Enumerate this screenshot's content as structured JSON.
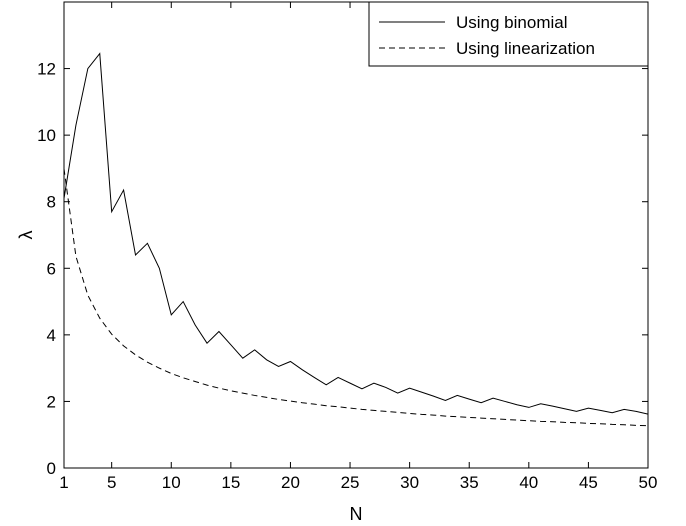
{
  "chart_data": {
    "type": "line",
    "title": "",
    "xlabel": "N",
    "ylabel": "λ",
    "xlim": [
      1,
      50
    ],
    "ylim": [
      0,
      14
    ],
    "grid": false,
    "legend_position": "top-right",
    "x_ticks": [
      1,
      5,
      10,
      15,
      20,
      25,
      30,
      35,
      40,
      45,
      50
    ],
    "y_ticks": [
      0,
      2,
      4,
      6,
      8,
      10,
      12
    ],
    "x": [
      1,
      2,
      3,
      4,
      5,
      6,
      7,
      8,
      9,
      10,
      11,
      12,
      13,
      14,
      15,
      16,
      17,
      18,
      19,
      20,
      21,
      22,
      23,
      24,
      25,
      26,
      27,
      28,
      29,
      30,
      31,
      32,
      33,
      34,
      35,
      36,
      37,
      38,
      39,
      40,
      41,
      42,
      43,
      44,
      45,
      46,
      47,
      48,
      49,
      50
    ],
    "series": [
      {
        "name": "Using binomial",
        "style": "solid",
        "color": "#000000",
        "values": [
          8.1,
          10.3,
          12.0,
          12.45,
          7.7,
          8.35,
          6.4,
          6.75,
          6.0,
          4.6,
          5.0,
          4.3,
          3.75,
          4.1,
          3.7,
          3.3,
          3.55,
          3.25,
          3.05,
          3.2,
          2.95,
          2.72,
          2.5,
          2.72,
          2.55,
          2.38,
          2.55,
          2.42,
          2.25,
          2.4,
          2.28,
          2.16,
          2.03,
          2.18,
          2.07,
          1.96,
          2.1,
          2.0,
          1.9,
          1.82,
          1.93,
          1.86,
          1.78,
          1.7,
          1.8,
          1.73,
          1.66,
          1.76,
          1.7,
          1.62
        ]
      },
      {
        "name": "Using linearization",
        "style": "dashed",
        "color": "#000000",
        "values": [
          8.99,
          6.36,
          5.19,
          4.5,
          4.02,
          3.67,
          3.4,
          3.18,
          3.0,
          2.84,
          2.71,
          2.6,
          2.49,
          2.4,
          2.32,
          2.25,
          2.18,
          2.12,
          2.06,
          2.01,
          1.96,
          1.92,
          1.87,
          1.84,
          1.8,
          1.76,
          1.73,
          1.7,
          1.67,
          1.64,
          1.61,
          1.59,
          1.56,
          1.54,
          1.52,
          1.5,
          1.48,
          1.46,
          1.44,
          1.42,
          1.4,
          1.39,
          1.37,
          1.36,
          1.34,
          1.33,
          1.31,
          1.3,
          1.28,
          1.27
        ]
      }
    ]
  }
}
